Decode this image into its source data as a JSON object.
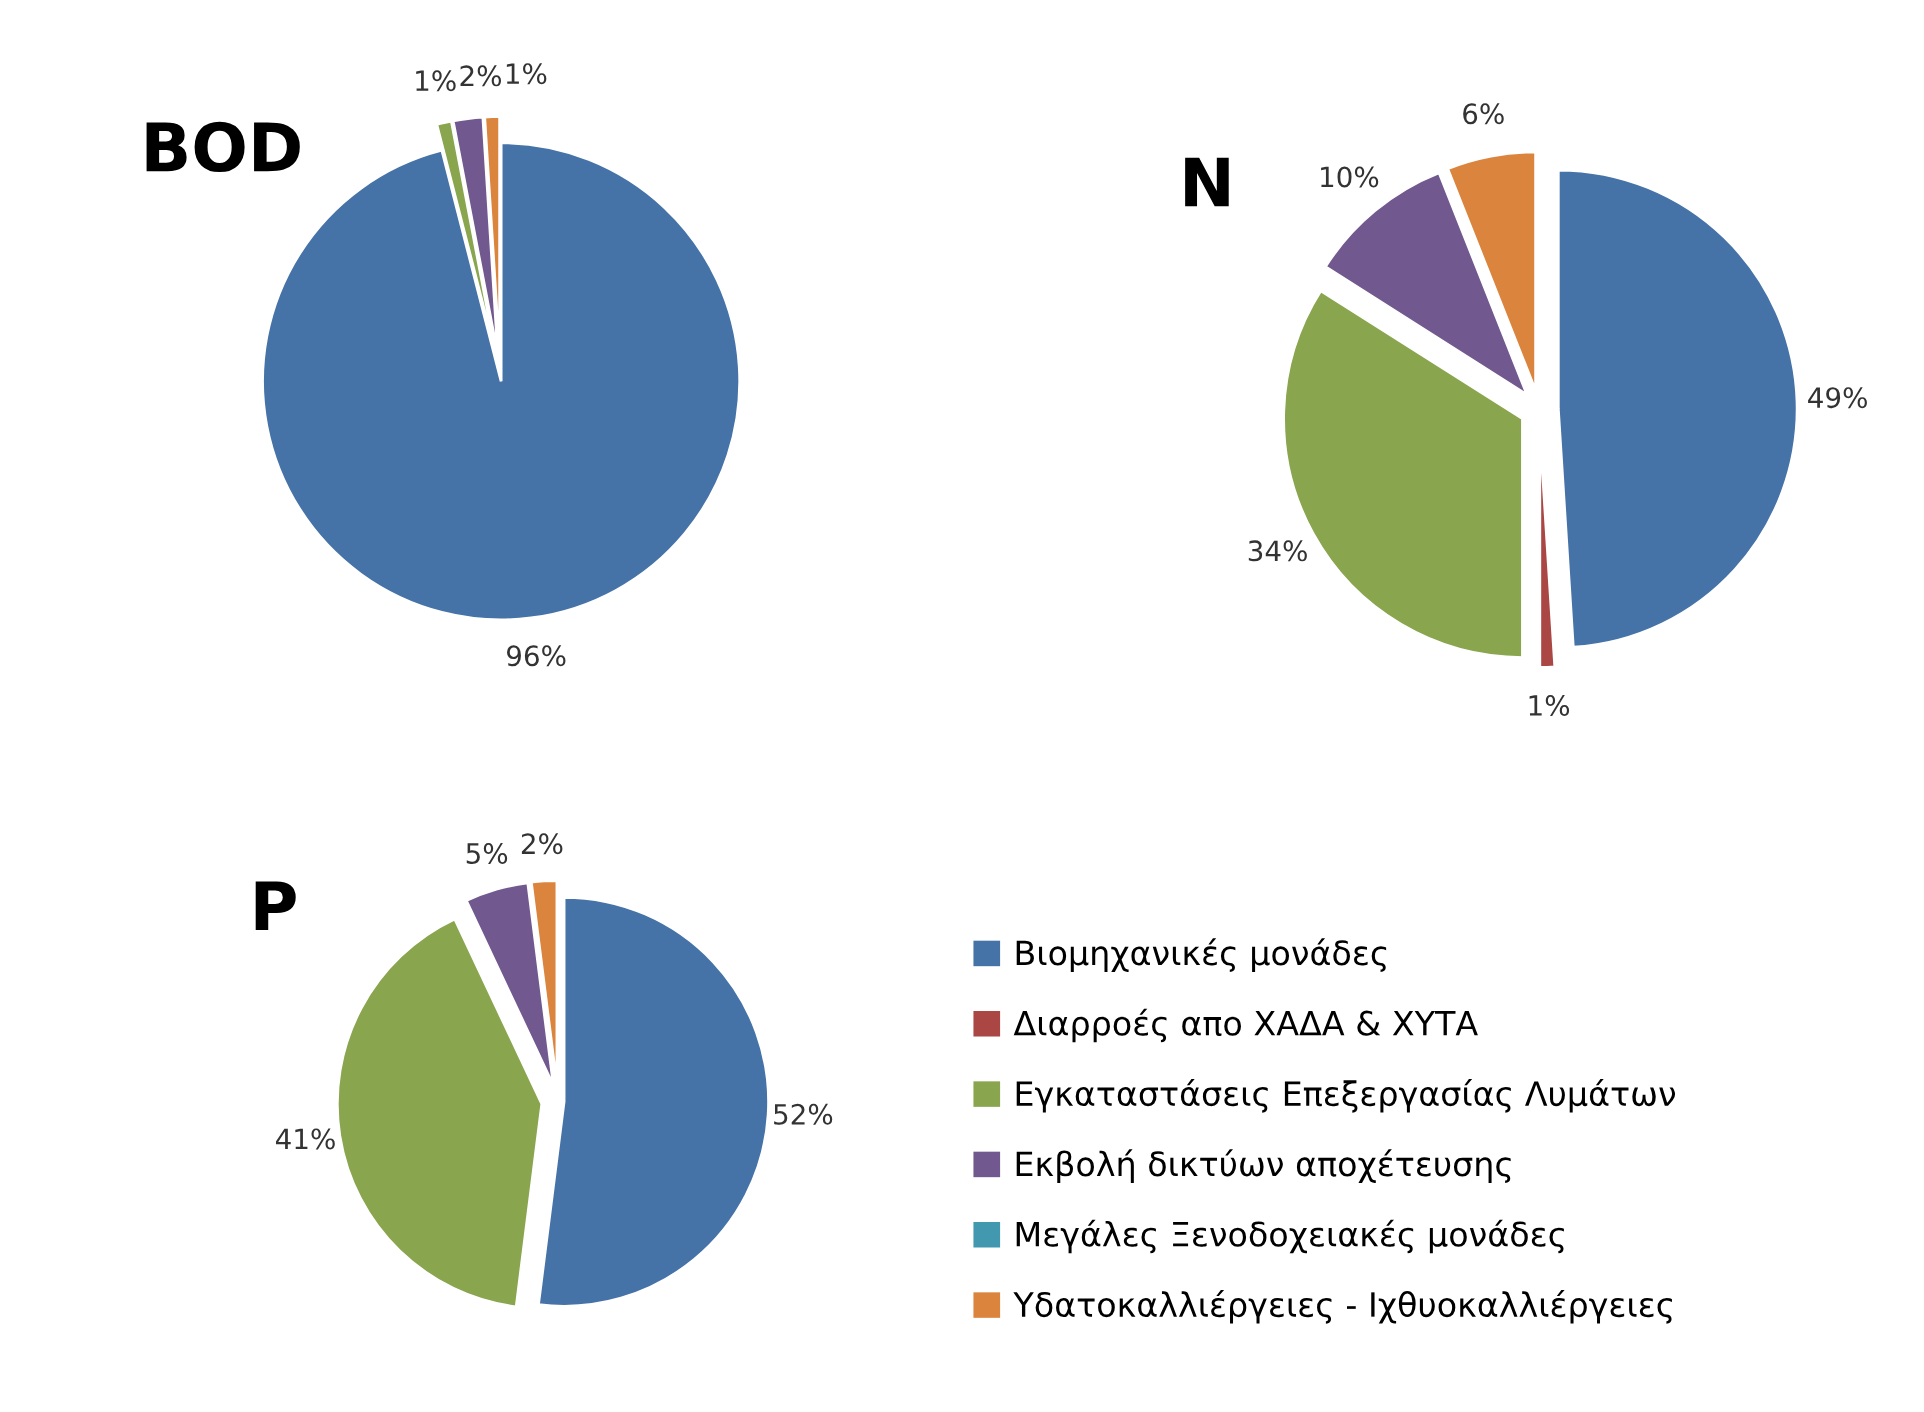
{
  "chart_data": [
    {
      "type": "pie",
      "title": "BOD",
      "categories": [
        null,
        null,
        null,
        null,
        null,
        null
      ],
      "values": [
        96,
        0,
        1,
        2,
        0,
        1
      ],
      "value_labels": [
        "96%",
        null,
        "1%",
        "2%",
        null,
        "1%"
      ],
      "colors": [
        "#4572a7",
        "#aa4643",
        "#89a54e",
        "#71588f",
        "#4198af",
        "#db843d"
      ],
      "legend": false
    },
    {
      "type": "pie",
      "title": "N",
      "categories": [
        null,
        null,
        null,
        null,
        null,
        null
      ],
      "values": [
        49,
        1,
        34,
        10,
        0,
        6
      ],
      "value_labels": [
        "49%",
        "1%",
        "34%",
        "10%",
        null,
        "6%"
      ],
      "colors": [
        "#4572a7",
        "#aa4643",
        "#89a54e",
        "#71588f",
        "#4198af",
        "#db843d"
      ],
      "legend": false
    },
    {
      "type": "pie",
      "title": "P",
      "categories": [
        "Βιομηχανικές μονάδες",
        "Διαρροές απο ΧΑΔΑ & ΧΥΤΑ",
        "Εγκαταστάσεις Επεξεργασίας Λυμάτων",
        "Εκβολή δικτύων αποχέτευσης",
        "Μεγάλες Ξενοδοχειακές μονάδες",
        "Υδατοκαλλιέργειες - Ιχθυοκαλλιέργειες"
      ],
      "values": [
        52,
        0,
        41,
        5,
        0,
        2
      ],
      "value_labels": [
        "52%",
        null,
        "41%",
        "5%",
        null,
        "2%"
      ],
      "colors": [
        "#4572a7",
        "#aa4643",
        "#89a54e",
        "#71588f",
        "#4198af",
        "#db843d"
      ],
      "legend": "right"
    }
  ]
}
